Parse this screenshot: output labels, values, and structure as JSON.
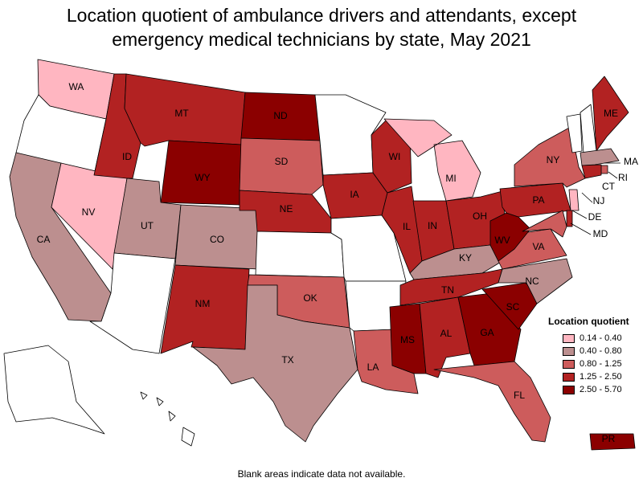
{
  "title_line1": "Location quotient of ambulance drivers and attendants, except",
  "title_line2": "emergency medical technicians by state, May 2021",
  "footnote": "Blank areas indicate data not available.",
  "legend": {
    "title": "Location quotient",
    "items": [
      {
        "range": "0.14 - 0.40",
        "color": "#ffb6c1"
      },
      {
        "range": "0.40 - 0.80",
        "color": "#bc8f8f"
      },
      {
        "range": "0.80 - 1.25",
        "color": "#cd5c5c"
      },
      {
        "range": "1.25 - 2.50",
        "color": "#b22222"
      },
      {
        "range": "2.50 - 5.70",
        "color": "#8b0000"
      }
    ]
  },
  "states": {
    "WA": "0.14 - 0.40",
    "OR": null,
    "CA": "0.40 - 0.80",
    "NV": "0.14 - 0.40",
    "ID": "1.25 - 2.50",
    "MT": "1.25 - 2.50",
    "WY": "2.50 - 5.70",
    "UT": "0.40 - 0.80",
    "CO": "0.40 - 0.80",
    "AZ": null,
    "NM": "1.25 - 2.50",
    "ND": "2.50 - 5.70",
    "SD": "0.80 - 1.25",
    "NE": "1.25 - 2.50",
    "KS": null,
    "OK": "0.80 - 1.25",
    "TX": "0.40 - 0.80",
    "MN": null,
    "IA": "1.25 - 2.50",
    "MO": null,
    "AR": null,
    "LA": "0.80 - 1.25",
    "WI": "1.25 - 2.50",
    "IL": "1.25 - 2.50",
    "MI": "0.14 - 0.40",
    "IN": "1.25 - 2.50",
    "OH": "1.25 - 2.50",
    "KY": "0.40 - 0.80",
    "TN": "1.25 - 2.50",
    "MS": "2.50 - 5.70",
    "AL": "1.25 - 2.50",
    "GA": "2.50 - 5.70",
    "FL": "0.80 - 1.25",
    "SC": "2.50 - 5.70",
    "NC": "0.40 - 0.80",
    "VA": "0.80 - 1.25",
    "WV": "2.50 - 5.70",
    "PA": "1.25 - 2.50",
    "NY": "0.80 - 1.25",
    "VT": null,
    "NH": null,
    "ME": "1.25 - 2.50",
    "MA": "0.40 - 0.80",
    "RI": "0.80 - 1.25",
    "CT": "1.25 - 2.50",
    "NJ": "0.14 - 0.40",
    "DE": "1.25 - 2.50",
    "MD": "0.80 - 1.25",
    "AK": null,
    "HI": null,
    "PR": "2.50 - 5.70"
  }
}
